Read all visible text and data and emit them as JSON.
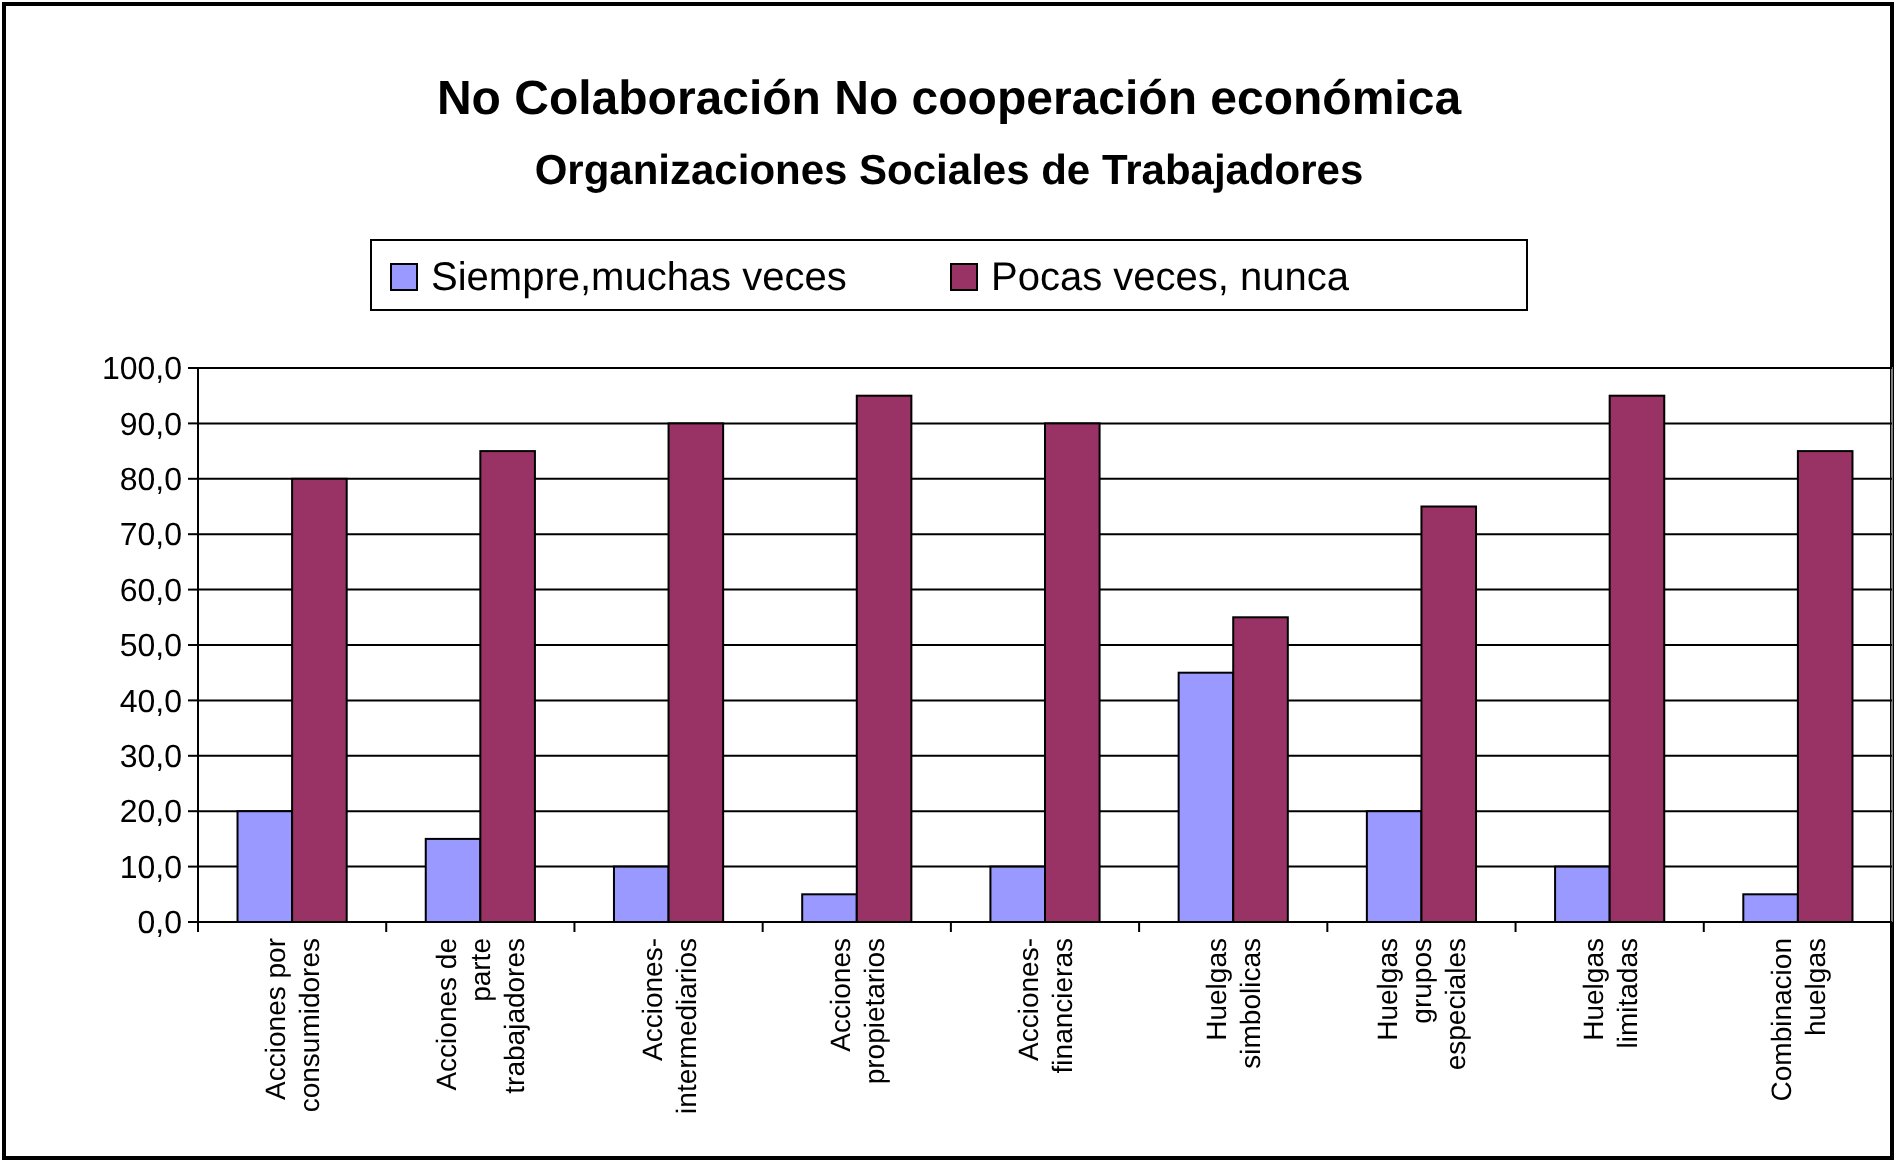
{
  "chart_data": {
    "type": "bar",
    "title": "No Colaboración No cooperación económica",
    "subtitle": "Organizaciones Sociales de Trabajadores",
    "categories": [
      "Acciones por\nconsumidores",
      "Acciones de\nparte\ntrabajadores",
      "Acciones-\nintermediarios",
      "Acciones\npropietarios",
      "Acciones-\nfinancieras",
      "Huelgas\nsimbolicas",
      "Huelgas\ngrupos\nespeciales",
      "Huelgas\nlimitadas",
      "Combinacion\nhuelgas"
    ],
    "series": [
      {
        "name": "Siempre,muchas veces",
        "color": "#9999ff",
        "values": [
          20,
          15,
          10,
          5,
          10,
          45,
          20,
          10,
          5
        ]
      },
      {
        "name": "Pocas veces, nunca",
        "color": "#993366",
        "values": [
          80,
          85,
          90,
          95,
          90,
          55,
          75,
          95,
          85
        ]
      }
    ],
    "ylim": [
      0,
      100
    ],
    "yticks": [
      {
        "value": 0,
        "label": "0,0"
      },
      {
        "value": 10,
        "label": "10,0"
      },
      {
        "value": 20,
        "label": "20,0"
      },
      {
        "value": 30,
        "label": "30,0"
      },
      {
        "value": 40,
        "label": "40,0"
      },
      {
        "value": 50,
        "label": "50,0"
      },
      {
        "value": 60,
        "label": "60,0"
      },
      {
        "value": 70,
        "label": "70,0"
      },
      {
        "value": 80,
        "label": "80,0"
      },
      {
        "value": 90,
        "label": "90,0"
      },
      {
        "value": 100,
        "label": "100,0"
      }
    ],
    "grid": "y",
    "legend": "top"
  }
}
